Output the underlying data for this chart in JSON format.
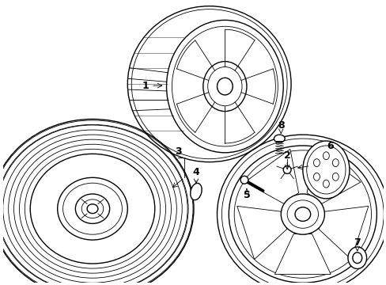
{
  "bg_color": "#ffffff",
  "line_color": "#000000",
  "lw": 1.0,
  "tlw": 0.6,
  "fig_width": 4.89,
  "fig_height": 3.6
}
